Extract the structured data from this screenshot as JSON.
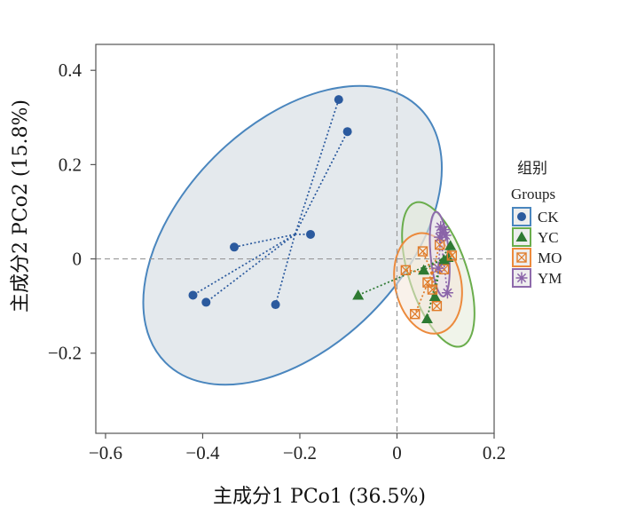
{
  "chart_data": {
    "type": "scatter",
    "xlabel": "主成分1 PCo1 (36.5%)",
    "ylabel": "主成分2 PCo2 (15.8%)",
    "xlim": [
      -0.62,
      0.2
    ],
    "ylim": [
      -0.37,
      0.455
    ],
    "x_ticks": [
      -0.6,
      -0.4,
      -0.2,
      0,
      0.2
    ],
    "x_tick_labels": [
      "−0.6",
      "−0.4",
      "−0.2",
      "0",
      "0.2"
    ],
    "y_ticks": [
      -0.2,
      0,
      0.2,
      0.4
    ],
    "y_tick_labels": [
      "−0.2",
      "0",
      "0.2",
      "0.4"
    ],
    "grid": false,
    "reference_lines": {
      "x": 0,
      "y": 0
    },
    "legend": {
      "title": "组别",
      "subtitle": "Groups",
      "placement": "right"
    },
    "series": [
      {
        "name": "CK",
        "marker": "circle",
        "color": "#2b5a9e",
        "ellipse_color": "#4a86be",
        "ellipse_fill": "#dfe5ea",
        "centroid": [
          -0.21,
          0.052
        ],
        "points": [
          [
            -0.12,
            0.338
          ],
          [
            -0.102,
            0.27
          ],
          [
            -0.335,
            0.025
          ],
          [
            -0.178,
            0.052
          ],
          [
            -0.42,
            -0.077
          ],
          [
            -0.393,
            -0.092
          ],
          [
            -0.25,
            -0.097
          ]
        ],
        "ellipse": {
          "cx": -0.215,
          "cy": 0.05,
          "rx": 0.37,
          "ry": 0.235,
          "angle": 45
        }
      },
      {
        "name": "YC",
        "marker": "triangle",
        "color": "#2e7a32",
        "ellipse_color": "#6aad4c",
        "ellipse_fill": "#e3ebd8",
        "centroid": [
          0.09,
          -0.002
        ],
        "points": [
          [
            -0.08,
            -0.077
          ],
          [
            0.062,
            -0.127
          ],
          [
            0.078,
            -0.08
          ],
          [
            0.097,
            -0.002
          ],
          [
            0.11,
            0.028
          ],
          [
            0.105,
            0.003
          ],
          [
            0.055,
            -0.024
          ]
        ],
        "ellipse": {
          "cx": 0.085,
          "cy": -0.033,
          "rx": 0.06,
          "ry": 0.16,
          "angle": 18
        }
      },
      {
        "name": "MO",
        "marker": "square-x",
        "color": "#e07b29",
        "ellipse_color": "#ec8a3c",
        "ellipse_fill": "#f4e6d8",
        "centroid": [
          0.072,
          -0.03
        ],
        "points": [
          [
            0.018,
            -0.024
          ],
          [
            0.053,
            0.016
          ],
          [
            0.097,
            -0.022
          ],
          [
            0.113,
            0.007
          ],
          [
            0.088,
            0.03
          ],
          [
            0.037,
            -0.117
          ],
          [
            0.082,
            -0.1
          ],
          [
            0.063,
            -0.05
          ],
          [
            0.073,
            -0.065
          ]
        ],
        "ellipse": {
          "cx": 0.064,
          "cy": -0.052,
          "rx": 0.068,
          "ry": 0.108,
          "angle": 12
        }
      },
      {
        "name": "YM",
        "marker": "asterisk",
        "color": "#8a63a8",
        "ellipse_color": "#8e6aab",
        "ellipse_fill": "#e9e2ee",
        "centroid": [
          0.09,
          0.045
        ],
        "points": [
          [
            0.09,
            0.068
          ],
          [
            0.093,
            0.056
          ],
          [
            0.1,
            0.05
          ],
          [
            0.088,
            0.046
          ],
          [
            0.085,
            -0.02
          ],
          [
            0.104,
            -0.072
          ],
          [
            0.097,
            0.062
          ]
        ],
        "ellipse": {
          "cx": 0.088,
          "cy": 0.01,
          "rx": 0.019,
          "ry": 0.09,
          "angle": 5
        }
      }
    ]
  }
}
